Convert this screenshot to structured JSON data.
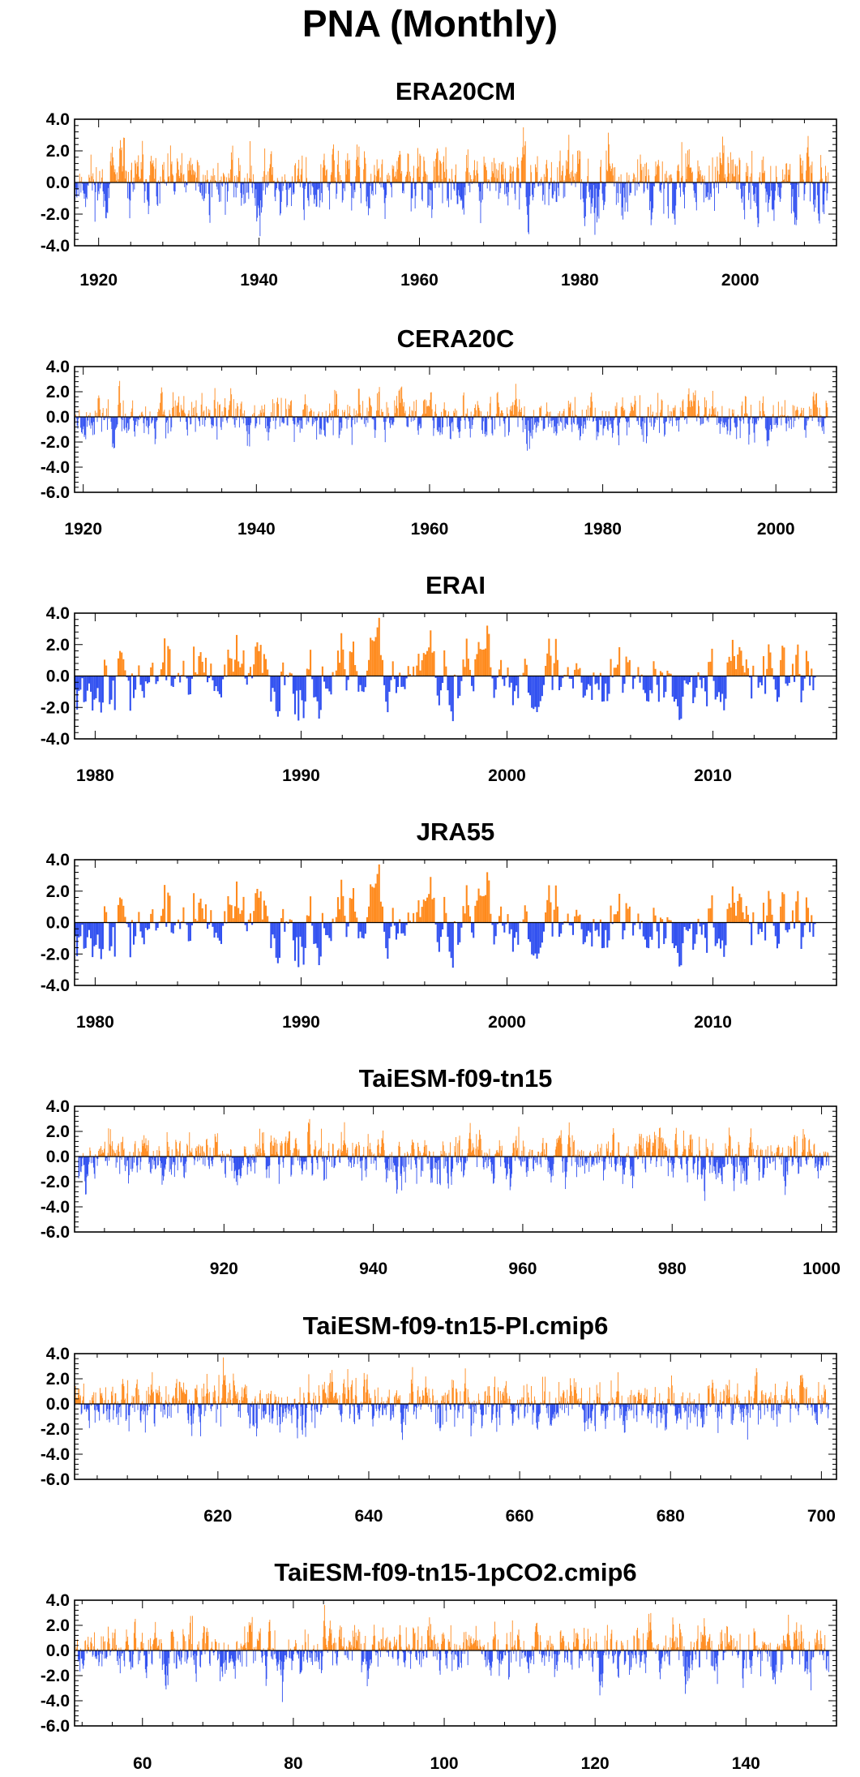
{
  "title": "PNA (Monthly)",
  "colors": {
    "positive": "#ff8a1c",
    "negative": "#2f4ff0",
    "frame": "#000000"
  },
  "chart_data": [
    {
      "type": "bar",
      "title": "ERA20CM",
      "xlim": [
        1917,
        2012
      ],
      "ylim": [
        -4,
        4
      ],
      "xticks": [
        1920,
        1940,
        1960,
        1980,
        2000
      ],
      "xtick_labels": [
        "1920",
        "1940",
        "1960",
        "1980",
        "2000"
      ],
      "yticks": [
        4,
        2,
        0,
        -2,
        -4
      ],
      "ytick_labels": [
        "4.0",
        "2.0",
        "0.0",
        "-2.0",
        "-4.0"
      ],
      "x_start": 1917.0,
      "x_end": 2011.0,
      "amp": 2.4,
      "seed": 11
    },
    {
      "type": "bar",
      "title": "CERA20C",
      "xlim": [
        1919,
        2007
      ],
      "ylim": [
        -6,
        4
      ],
      "xticks": [
        1920,
        1940,
        1960,
        1980,
        2000
      ],
      "xtick_labels": [
        "1920",
        "1940",
        "1960",
        "1980",
        "2000"
      ],
      "yticks": [
        4,
        2,
        0,
        -2,
        -4,
        -6
      ],
      "ytick_labels": [
        "4.0",
        "2.0",
        "0.0",
        "-2.0",
        "-4.0",
        "-6.0"
      ],
      "x_start": 1919.0,
      "x_end": 2006.0,
      "amp": 2.2,
      "seed": 23
    },
    {
      "type": "bar",
      "title": "ERAI",
      "xlim": [
        1979,
        2016
      ],
      "ylim": [
        -4,
        4
      ],
      "xticks": [
        1980,
        1990,
        2000,
        2010
      ],
      "xtick_labels": [
        "1980",
        "1990",
        "2000",
        "2010"
      ],
      "yticks": [
        4,
        2,
        0,
        -2,
        -4
      ],
      "ytick_labels": [
        "4.0",
        "2.0",
        "0.0",
        "-2.0",
        "-4.0"
      ],
      "x_start": 1979.0,
      "x_end": 2015.0,
      "amp": 2.6,
      "seed": 37
    },
    {
      "type": "bar",
      "title": "JRA55",
      "xlim": [
        1979,
        2016
      ],
      "ylim": [
        -4,
        4
      ],
      "xticks": [
        1980,
        1990,
        2000,
        2010
      ],
      "xtick_labels": [
        "1980",
        "1990",
        "2000",
        "2010"
      ],
      "yticks": [
        4,
        2,
        0,
        -2,
        -4
      ],
      "ytick_labels": [
        "4.0",
        "2.0",
        "0.0",
        "-2.0",
        "-4.0"
      ],
      "x_start": 1979.0,
      "x_end": 2015.0,
      "amp": 2.6,
      "seed": 37
    },
    {
      "type": "bar",
      "title": "TaiESM-f09-tn15",
      "xlim": [
        900,
        1002
      ],
      "ylim": [
        -6,
        4
      ],
      "xticks": [
        920,
        940,
        960,
        980,
        1000
      ],
      "xtick_labels": [
        "920",
        "940",
        "960",
        "980",
        "1000"
      ],
      "yticks": [
        4,
        2,
        0,
        -2,
        -4,
        -6
      ],
      "ytick_labels": [
        "4.0",
        "2.0",
        "0.0",
        "-2.0",
        "-4.0",
        "-6.0"
      ],
      "x_start": 900.5,
      "x_end": 1001.0,
      "amp": 2.3,
      "seed": 53
    },
    {
      "type": "bar",
      "title": "TaiESM-f09-tn15-PI.cmip6",
      "xlim": [
        601,
        702
      ],
      "ylim": [
        -6,
        4
      ],
      "xticks": [
        620,
        640,
        660,
        680,
        700
      ],
      "xtick_labels": [
        "620",
        "640",
        "660",
        "680",
        "700"
      ],
      "yticks": [
        4,
        2,
        0,
        -2,
        -4,
        -6
      ],
      "ytick_labels": [
        "4.0",
        "2.0",
        "0.0",
        "-2.0",
        "-4.0",
        "-6.0"
      ],
      "x_start": 601.0,
      "x_end": 701.0,
      "amp": 2.4,
      "seed": 71
    },
    {
      "type": "bar",
      "title": "TaiESM-f09-tn15-1pCO2.cmip6",
      "xlim": [
        51,
        152
      ],
      "ylim": [
        -6,
        4
      ],
      "xticks": [
        60,
        80,
        100,
        120,
        140
      ],
      "xtick_labels": [
        "60",
        "80",
        "100",
        "120",
        "140"
      ],
      "yticks": [
        4,
        2,
        0,
        -2,
        -4,
        -6
      ],
      "ytick_labels": [
        "4.0",
        "2.0",
        "0.0",
        "-2.0",
        "-4.0",
        "-6.0"
      ],
      "x_start": 51.0,
      "x_end": 151.0,
      "amp": 2.4,
      "seed": 89
    }
  ]
}
